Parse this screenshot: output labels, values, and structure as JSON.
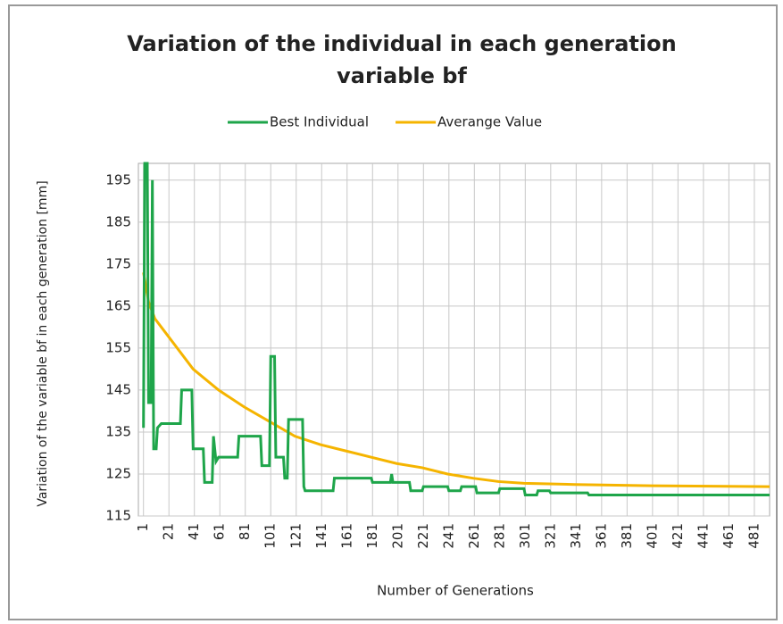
{
  "chart_data": {
    "type": "line",
    "title": [
      "Variation of the individual in each generation",
      "variable bf"
    ],
    "xlabel": "Number of Generations",
    "ylabel": "Variation of the variable bf in each generation [mm]",
    "xlim": [
      -3,
      493
    ],
    "ylim": [
      115,
      199
    ],
    "xticks": [
      1,
      21,
      41,
      61,
      81,
      101,
      121,
      141,
      161,
      181,
      201,
      221,
      241,
      261,
      281,
      301,
      321,
      341,
      361,
      381,
      401,
      421,
      441,
      461,
      481
    ],
    "yticks": [
      115,
      125,
      135,
      145,
      155,
      165,
      175,
      185,
      195
    ],
    "grid": true,
    "legend": "top",
    "series": [
      {
        "name": "Best Individual",
        "color": "#1ea54a",
        "x": [
          1,
          2,
          4,
          5,
          7,
          8,
          9,
          11,
          12,
          15,
          30,
          31,
          39,
          40,
          48,
          49,
          55,
          56,
          58,
          60,
          75,
          76,
          93,
          94,
          100,
          101,
          104,
          105,
          111,
          112,
          114,
          115,
          126,
          127,
          128,
          150,
          151,
          180,
          181,
          195,
          196,
          197,
          210,
          211,
          220,
          221,
          240,
          241,
          250,
          251,
          262,
          263,
          280,
          281,
          300,
          301,
          310,
          311,
          320,
          321,
          350,
          351,
          493
        ],
        "values": [
          136,
          199,
          199,
          142,
          142,
          195,
          131,
          131,
          136,
          137,
          137,
          145,
          145,
          131,
          131,
          123,
          123,
          134,
          128,
          129,
          129,
          134,
          134,
          127,
          127,
          153,
          153,
          129,
          129,
          124,
          124,
          138,
          138,
          122,
          121,
          121,
          124,
          124,
          123,
          123,
          125,
          123,
          123,
          121,
          121,
          122,
          122,
          121,
          121,
          122,
          122,
          120.5,
          120.5,
          121.5,
          121.5,
          120,
          120,
          121,
          121,
          120.5,
          120.5,
          120,
          120
        ]
      },
      {
        "name": "Averange Value",
        "color": "#f5b400",
        "x": [
          1,
          5,
          10,
          20,
          40,
          60,
          80,
          100,
          120,
          140,
          160,
          180,
          200,
          220,
          240,
          260,
          280,
          300,
          340,
          400,
          493
        ],
        "values": [
          173,
          166,
          162,
          158,
          150,
          145,
          141,
          137.5,
          134,
          132,
          130.5,
          129,
          127.5,
          126.5,
          125,
          124,
          123.2,
          122.8,
          122.5,
          122.2,
          122
        ]
      }
    ]
  }
}
